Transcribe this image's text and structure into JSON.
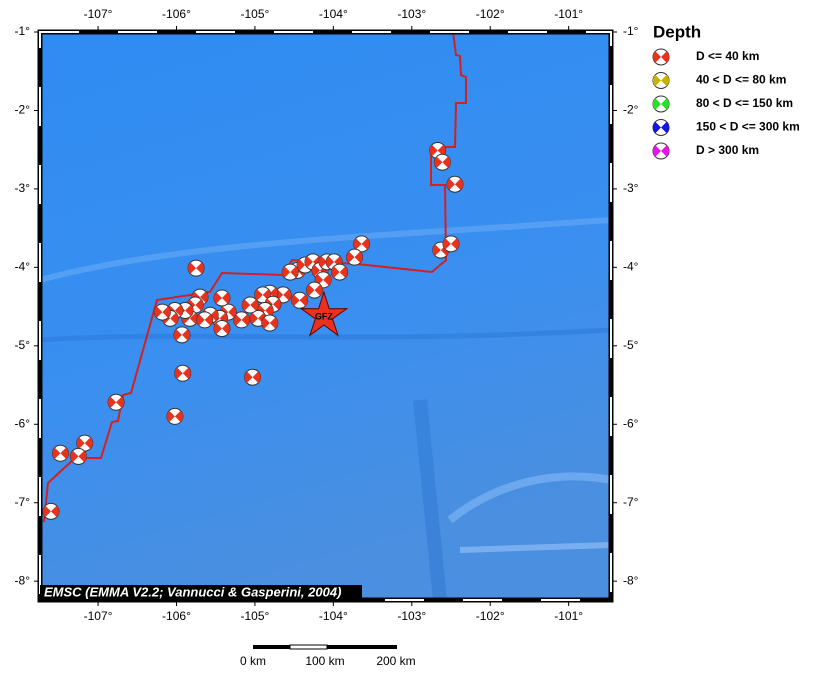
{
  "map": {
    "lon_range": [
      -107.74,
      -100.46
    ],
    "lat_range": [
      -1,
      -8.24
    ],
    "lon_ticks": [
      {
        "value": -107,
        "label": "-107°"
      },
      {
        "value": -106,
        "label": "-106°"
      },
      {
        "value": -105,
        "label": "-105°"
      },
      {
        "value": -104,
        "label": "-104°"
      },
      {
        "value": -103,
        "label": "-103°"
      },
      {
        "value": -102,
        "label": "-102°"
      },
      {
        "value": -101,
        "label": "-101°"
      }
    ],
    "lat_ticks": [
      {
        "value": -1,
        "label": "-1°"
      },
      {
        "value": -2,
        "label": "-2°"
      },
      {
        "value": -3,
        "label": "-3°"
      },
      {
        "value": -4,
        "label": "-4°"
      },
      {
        "value": -5,
        "label": "-5°"
      },
      {
        "value": -6,
        "label": "-6°"
      },
      {
        "value": -7,
        "label": "-7°"
      },
      {
        "value": -8,
        "label": "-8°"
      }
    ],
    "credit": "EMSC (EMMA V2.2; Vannucci & Gasperini, 2004)",
    "station": {
      "label": "GFZ",
      "lon": -104.12,
      "lat": -4.62,
      "color": "#e8321e"
    },
    "event_color": "#e8321e",
    "events": [
      {
        "lon": -102.67,
        "lat": -2.51
      },
      {
        "lon": -102.61,
        "lat": -2.66
      },
      {
        "lon": -102.45,
        "lat": -2.94
      },
      {
        "lon": -102.63,
        "lat": -3.78
      },
      {
        "lon": -102.5,
        "lat": -3.7
      },
      {
        "lon": -103.64,
        "lat": -3.7
      },
      {
        "lon": -103.73,
        "lat": -3.87
      },
      {
        "lon": -104.46,
        "lat": -4.04
      },
      {
        "lon": -104.36,
        "lat": -3.97
      },
      {
        "lon": -104.26,
        "lat": -3.93
      },
      {
        "lon": -104.17,
        "lat": -4.04
      },
      {
        "lon": -104.08,
        "lat": -3.93
      },
      {
        "lon": -103.99,
        "lat": -3.93
      },
      {
        "lon": -103.92,
        "lat": -4.06
      },
      {
        "lon": -104.13,
        "lat": -4.16
      },
      {
        "lon": -104.24,
        "lat": -4.29
      },
      {
        "lon": -104.55,
        "lat": -4.06
      },
      {
        "lon": -104.43,
        "lat": -4.42
      },
      {
        "lon": -104.64,
        "lat": -4.35
      },
      {
        "lon": -104.81,
        "lat": -4.33
      },
      {
        "lon": -104.9,
        "lat": -4.35
      },
      {
        "lon": -104.77,
        "lat": -4.47
      },
      {
        "lon": -104.87,
        "lat": -4.55
      },
      {
        "lon": -104.96,
        "lat": -4.65
      },
      {
        "lon": -104.81,
        "lat": -4.71
      },
      {
        "lon": -105.06,
        "lat": -4.48
      },
      {
        "lon": -105.17,
        "lat": -4.67
      },
      {
        "lon": -105.34,
        "lat": -4.57
      },
      {
        "lon": -105.42,
        "lat": -4.39
      },
      {
        "lon": -105.45,
        "lat": -4.65
      },
      {
        "lon": -105.42,
        "lat": -4.78
      },
      {
        "lon": -105.57,
        "lat": -4.61
      },
      {
        "lon": -105.7,
        "lat": -4.38
      },
      {
        "lon": -105.76,
        "lat": -4.48
      },
      {
        "lon": -105.83,
        "lat": -4.65
      },
      {
        "lon": -105.89,
        "lat": -4.55
      },
      {
        "lon": -106.02,
        "lat": -4.55
      },
      {
        "lon": -106.08,
        "lat": -4.65
      },
      {
        "lon": -106.18,
        "lat": -4.57
      },
      {
        "lon": -105.64,
        "lat": -4.67
      },
      {
        "lon": -105.75,
        "lat": -4.01
      },
      {
        "lon": -105.93,
        "lat": -4.86
      },
      {
        "lon": -105.92,
        "lat": -5.35
      },
      {
        "lon": -105.03,
        "lat": -5.4
      },
      {
        "lon": -106.02,
        "lat": -5.9
      },
      {
        "lon": -106.77,
        "lat": -5.72
      },
      {
        "lon": -107.17,
        "lat": -6.24
      },
      {
        "lon": -107.48,
        "lat": -6.37
      },
      {
        "lon": -107.25,
        "lat": -6.41
      },
      {
        "lon": -107.6,
        "lat": -7.11
      }
    ]
  },
  "legend": {
    "title": "Depth",
    "items": [
      {
        "label": "D <= 40 km",
        "color": "#e8321e"
      },
      {
        "label": "40 < D <= 80 km",
        "color": "#c8b400"
      },
      {
        "label": "80 < D <= 150 km",
        "color": "#28e028"
      },
      {
        "label": "150 < D <= 300 km",
        "color": "#1414e6"
      },
      {
        "label": "D > 300 km",
        "color": "#e614e6"
      }
    ]
  },
  "scale_bar": {
    "labels": [
      "0 km",
      "100 km",
      "200 km"
    ]
  }
}
